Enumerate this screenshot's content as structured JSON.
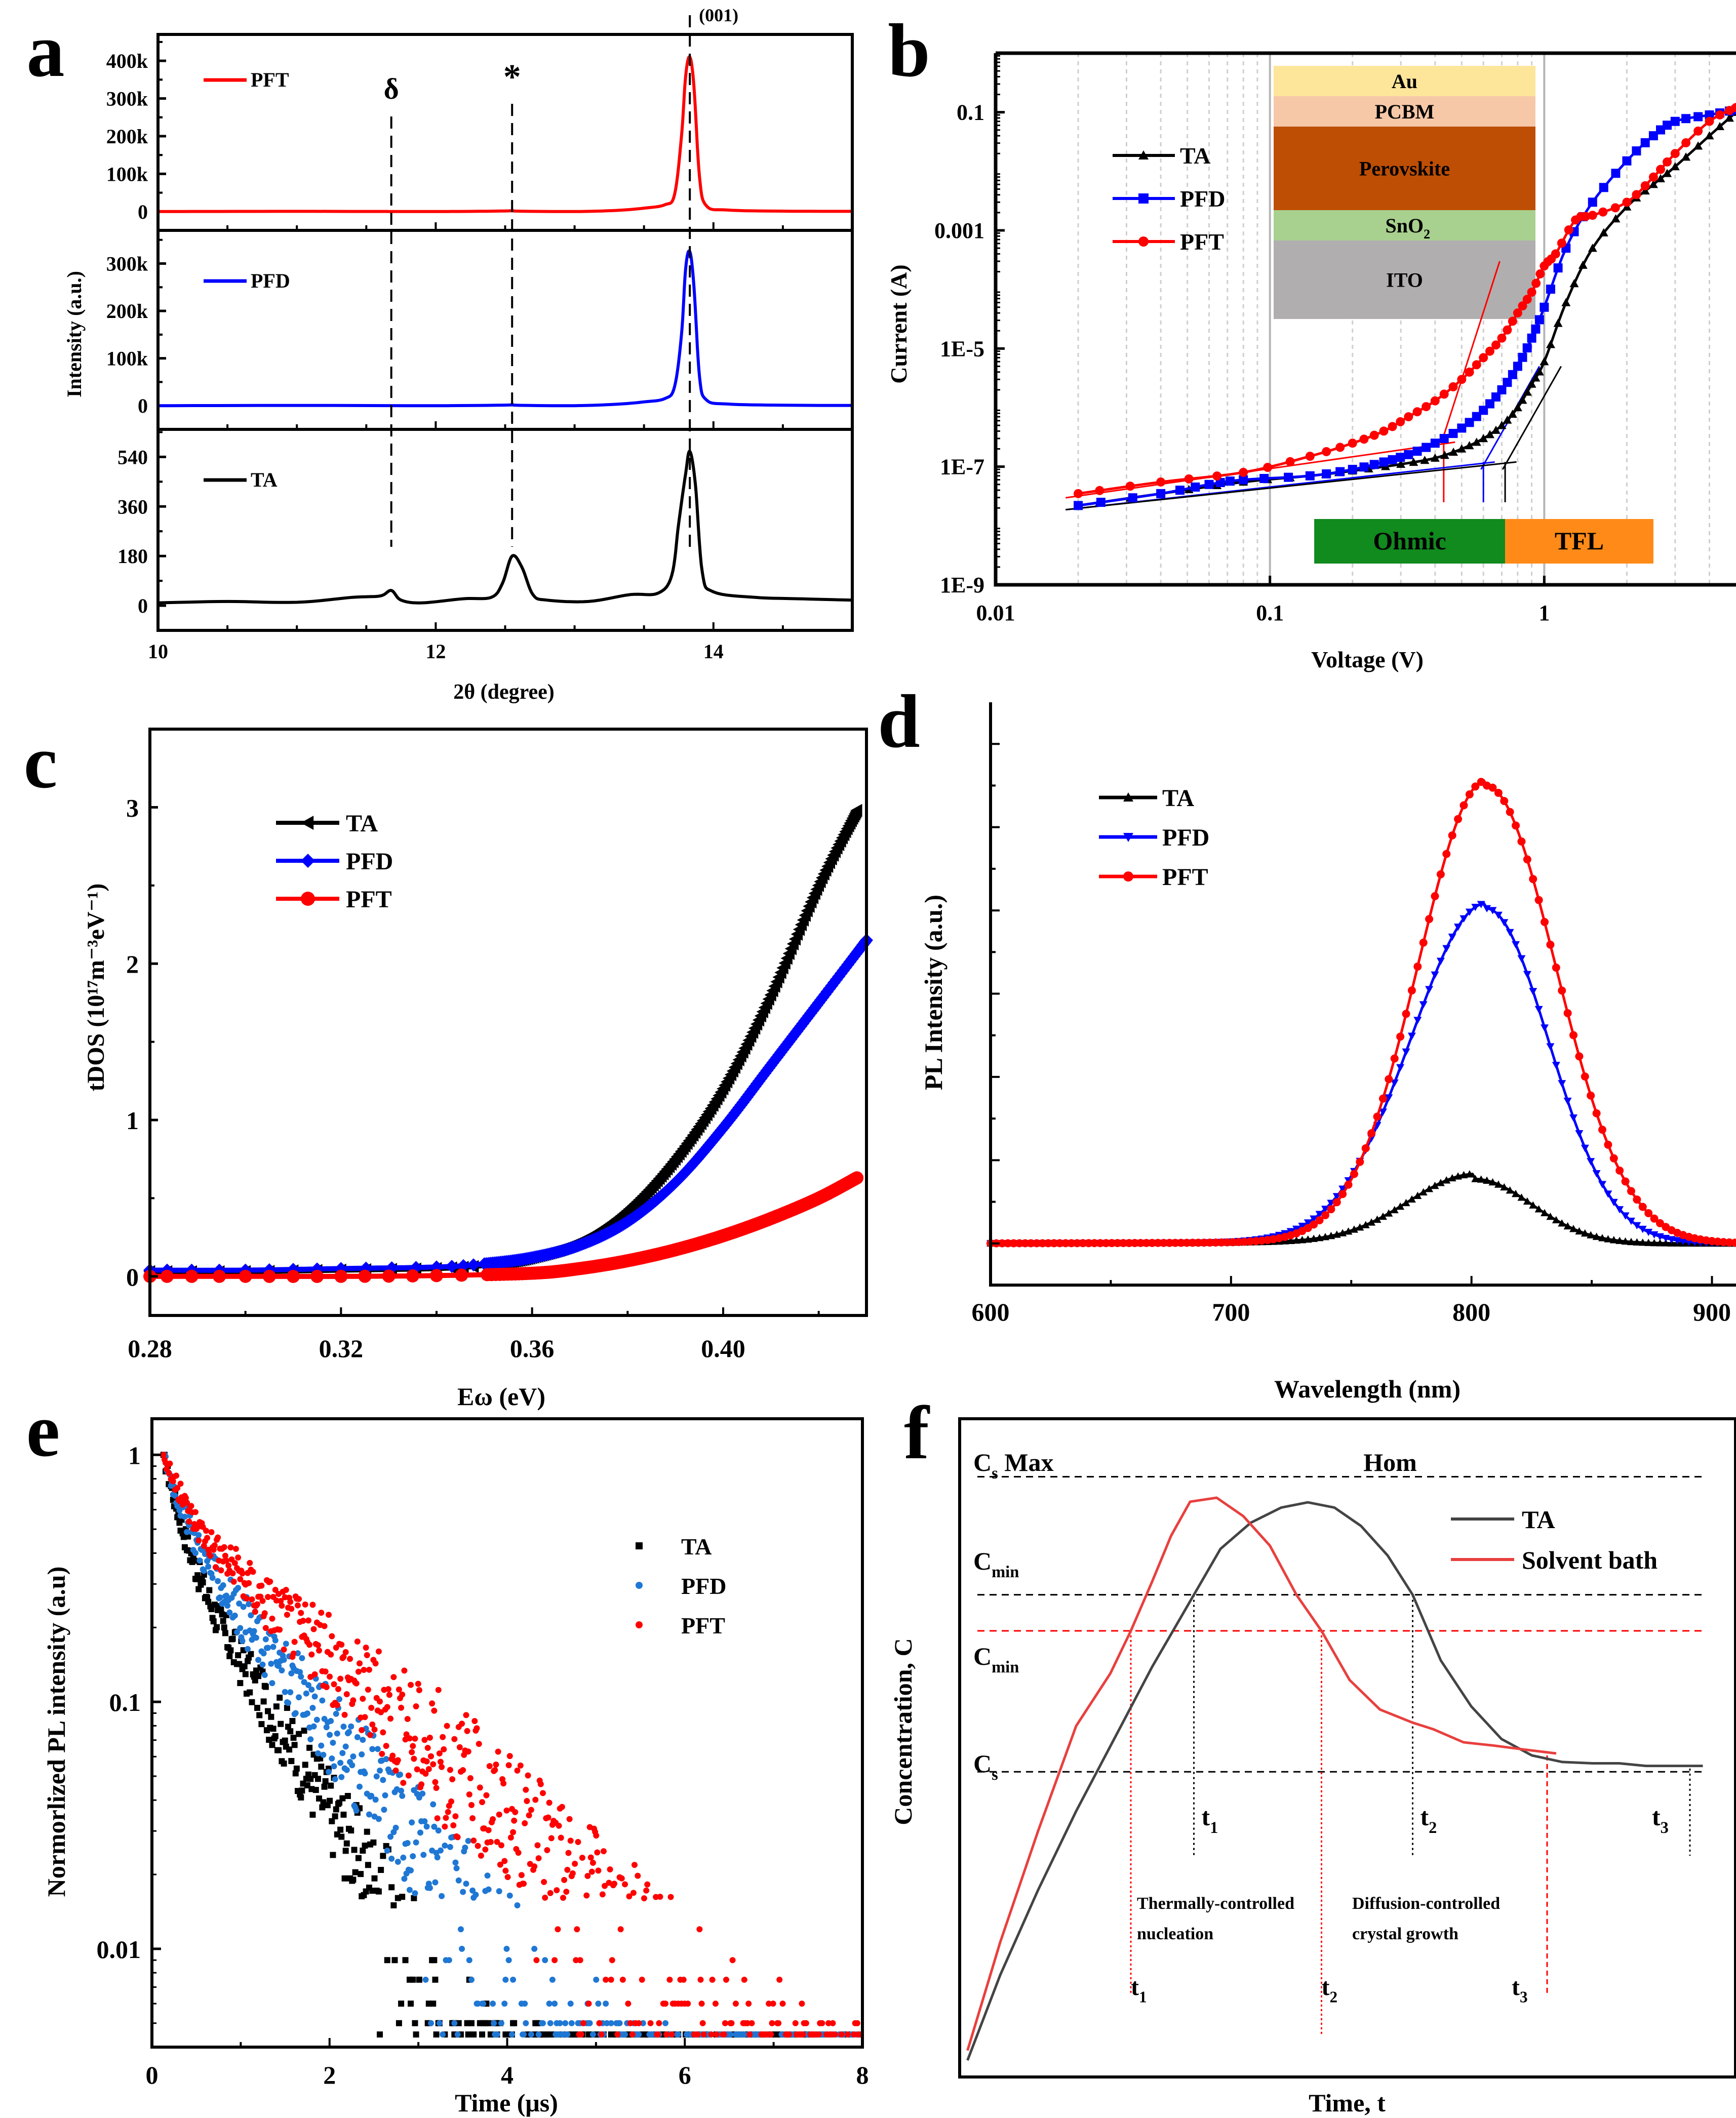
{
  "figure": {
    "panel_letters": [
      "a",
      "b",
      "c",
      "d",
      "e",
      "f"
    ]
  },
  "chart_data": [
    {
      "panel": "a",
      "type": "line",
      "title": "",
      "xlabel": "2θ (degree)",
      "ylabel": "Intensity (a.u.)",
      "xlim": [
        10,
        15
      ],
      "xticks": [
        10,
        12,
        14
      ],
      "colors": {
        "PFT": "#ff0000",
        "PFD": "#0000ff",
        "TA": "#000000"
      },
      "annotations": [
        {
          "text": "δ",
          "x": 11.68
        },
        {
          "text": "*",
          "x": 12.55
        },
        {
          "text": "(001)",
          "x": 13.83
        }
      ],
      "subplots": [
        {
          "name": "PFT",
          "ylim": [
            -50000,
            470000
          ],
          "yticks": [
            0,
            100000,
            200000,
            300000,
            400000
          ],
          "yticklabels": [
            "0",
            "100k",
            "200k",
            "300k",
            "400k"
          ],
          "x": [
            10,
            11,
            12,
            12.5,
            12.55,
            12.6,
            13,
            13.3,
            13.5,
            13.65,
            13.72,
            13.77,
            13.8,
            13.83,
            13.86,
            13.9,
            13.95,
            14.1,
            14.5,
            15
          ],
          "y": [
            0,
            500,
            0,
            1500,
            3000,
            1000,
            0,
            3000,
            9000,
            18000,
            45000,
            200000,
            360000,
            410000,
            330000,
            90000,
            15000,
            4000,
            1000,
            500
          ]
        },
        {
          "name": "PFD",
          "ylim": [
            -50000,
            370000
          ],
          "yticks": [
            0,
            100000,
            200000,
            300000
          ],
          "yticklabels": [
            "0",
            "100k",
            "200k",
            "300k"
          ],
          "x": [
            10,
            11,
            12,
            12.5,
            12.55,
            12.6,
            13,
            13.3,
            13.5,
            13.65,
            13.72,
            13.77,
            13.8,
            13.83,
            13.86,
            13.9,
            13.95,
            14.1,
            14.5,
            15
          ],
          "y": [
            0,
            500,
            0,
            1200,
            2500,
            800,
            0,
            3000,
            8000,
            15000,
            40000,
            150000,
            290000,
            325000,
            250000,
            60000,
            12000,
            3500,
            1000,
            500
          ]
        },
        {
          "name": "TA",
          "ylim": [
            -90,
            640
          ],
          "yticks": [
            0,
            180,
            360,
            540
          ],
          "yticklabels": [
            "0",
            "180",
            "360",
            "540"
          ],
          "x": [
            10,
            10.5,
            11,
            11.4,
            11.6,
            11.68,
            11.75,
            11.9,
            12.2,
            12.4,
            12.48,
            12.55,
            12.62,
            12.7,
            12.8,
            13.1,
            13.4,
            13.6,
            13.7,
            13.75,
            13.8,
            13.83,
            13.87,
            13.92,
            14.0,
            14.3,
            14.6,
            15
          ],
          "y": [
            10,
            15,
            12,
            30,
            35,
            55,
            20,
            10,
            25,
            30,
            80,
            180,
            140,
            40,
            20,
            15,
            40,
            45,
            110,
            300,
            480,
            560,
            440,
            120,
            50,
            30,
            25,
            20
          ]
        }
      ]
    },
    {
      "panel": "b",
      "type": "line",
      "title": "",
      "xlabel": "Voltage (V)",
      "ylabel": "Current (A)",
      "xscale": "log",
      "yscale": "log",
      "xlim": [
        0.01,
        5
      ],
      "ylim": [
        1e-09,
        1
      ],
      "xticklabels": [
        "0.01",
        "0.1",
        "1"
      ],
      "yticklabels": [
        "1E-9",
        "1E-7",
        "1E-5",
        "0.001",
        "0.1"
      ],
      "legend": {
        "position": "top-left",
        "entries": [
          "TA",
          "PFD",
          "PFT"
        ]
      },
      "colors": {
        "TA": "#000000",
        "PFD": "#0000ff",
        "PFT": "#ff0000"
      },
      "inset_layers": [
        {
          "label": "Au",
          "color": "#fde59a"
        },
        {
          "label": "PCBM",
          "color": "#f6c8a8"
        },
        {
          "label": "Perovskite",
          "color": "#bd4e04"
        },
        {
          "label": "SnO",
          "sub": "2",
          "color": "#a8d08e"
        },
        {
          "label": "ITO",
          "color": "#b0aeae"
        }
      ],
      "regions": [
        {
          "label": "Ohmic",
          "color": "#118a1e",
          "from": 0.145,
          "to": 0.72
        },
        {
          "label": "TFL",
          "color": "#ff8a17",
          "from": 0.72,
          "to": 2.5
        }
      ],
      "vtfl_lines": {
        "PFT": 0.43,
        "PFD": 0.6,
        "TA": 0.72
      },
      "series": [
        {
          "name": "TA",
          "x": [
            0.02,
            0.04,
            0.08,
            0.14,
            0.2,
            0.3,
            0.4,
            0.5,
            0.6,
            0.7,
            0.8,
            0.9,
            1.0,
            1.2,
            1.5,
            2.0,
            2.5,
            3.0,
            4.0,
            5.0
          ],
          "y": [
            2.2e-08,
            3.5e-08,
            5.5e-08,
            7e-08,
            8.5e-08,
            1.1e-07,
            1.4e-07,
            2e-07,
            3e-07,
            5e-07,
            1e-06,
            2.5e-06,
            6e-06,
            6e-05,
            0.0005,
            0.0025,
            0.006,
            0.012,
            0.04,
            0.1
          ]
        },
        {
          "name": "PFD",
          "x": [
            0.02,
            0.04,
            0.06,
            0.08,
            0.14,
            0.2,
            0.26,
            0.32,
            0.4,
            0.5,
            0.6,
            0.7,
            0.8,
            0.9,
            1.0,
            1.2,
            1.5,
            2.0,
            2.5,
            3.0,
            4.0,
            5.0
          ],
          "y": [
            2.2e-08,
            3.5e-08,
            5e-08,
            6e-08,
            7e-08,
            9e-08,
            1.2e-07,
            1.6e-07,
            2.5e-07,
            4.5e-07,
            9e-07,
            2e-06,
            5e-06,
            1.5e-05,
            5e-05,
            0.0005,
            0.003,
            0.015,
            0.04,
            0.07,
            0.09,
            0.11
          ]
        },
        {
          "name": "PFT",
          "x": [
            0.02,
            0.04,
            0.08,
            0.14,
            0.2,
            0.26,
            0.32,
            0.4,
            0.5,
            0.6,
            0.7,
            0.8,
            0.9,
            1.0,
            1.1,
            1.3,
            1.5,
            2.0,
            2.5,
            3.0,
            4.0,
            5.0
          ],
          "y": [
            3.5e-08,
            5.5e-08,
            8e-08,
            1.5e-07,
            2.5e-07,
            4e-07,
            7e-07,
            1.3e-06,
            3e-06,
            7e-06,
            1.5e-05,
            4e-05,
            9e-05,
            0.00025,
            0.0004,
            0.0015,
            0.0018,
            0.003,
            0.008,
            0.02,
            0.07,
            0.12
          ]
        }
      ]
    },
    {
      "panel": "c",
      "type": "line",
      "title": "",
      "xlabel": "Eω (eV)",
      "ylabel": "tDOS (10¹⁷m⁻³eV⁻¹)",
      "xlim": [
        0.28,
        0.43
      ],
      "ylim": [
        -0.25,
        3.5
      ],
      "xticks": [
        0.28,
        0.32,
        0.36,
        0.4
      ],
      "xticklabels": [
        "0.28",
        "0.32",
        "0.36",
        "0.40"
      ],
      "yticks": [
        0,
        1,
        2,
        3
      ],
      "yticklabels": [
        "0",
        "1",
        "2",
        "3"
      ],
      "legend": {
        "position": "top-left",
        "entries": [
          "TA",
          "PFD",
          "PFT"
        ]
      },
      "colors": {
        "TA": "#000000",
        "PFD": "#0000ff",
        "PFT": "#ff0000"
      },
      "series": [
        {
          "name": "TA",
          "x": [
            0.28,
            0.3,
            0.32,
            0.34,
            0.35,
            0.36,
            0.37,
            0.38,
            0.39,
            0.4,
            0.41,
            0.42,
            0.428
          ],
          "y": [
            0.03,
            0.03,
            0.04,
            0.05,
            0.07,
            0.12,
            0.22,
            0.42,
            0.75,
            1.2,
            1.8,
            2.5,
            2.98
          ]
        },
        {
          "name": "PFD",
          "x": [
            0.28,
            0.3,
            0.32,
            0.34,
            0.35,
            0.36,
            0.37,
            0.38,
            0.39,
            0.4,
            0.41,
            0.42,
            0.43
          ],
          "y": [
            0.04,
            0.04,
            0.05,
            0.06,
            0.08,
            0.12,
            0.2,
            0.35,
            0.6,
            0.95,
            1.35,
            1.75,
            2.15
          ]
        },
        {
          "name": "PFT",
          "x": [
            0.28,
            0.3,
            0.32,
            0.34,
            0.36,
            0.37,
            0.38,
            0.39,
            0.4,
            0.41,
            0.42,
            0.428
          ],
          "y": [
            0,
            0,
            0,
            0.005,
            0.02,
            0.05,
            0.1,
            0.17,
            0.26,
            0.37,
            0.5,
            0.63
          ]
        }
      ]
    },
    {
      "panel": "d",
      "type": "line",
      "title": "",
      "xlabel": "Wavelength (nm)",
      "ylabel": "PL Intensity (a.u.)",
      "xlim": [
        600,
        910
      ],
      "ylim": [
        -0.1,
        1.3
      ],
      "xticks": [
        600,
        700,
        800,
        900
      ],
      "xticklabels": [
        "600",
        "700",
        "800",
        "900"
      ],
      "legend": {
        "position": "top-left",
        "entries": [
          "TA",
          "PFD",
          "PFT"
        ]
      },
      "colors": {
        "TA": "#000000",
        "PFD": "#0000ff",
        "PFT": "#ff0000"
      },
      "series": [
        {
          "name": "TA",
          "peak_x": 801,
          "peak_y": 0.155,
          "sigma_left": 27,
          "sigma_right": 24
        },
        {
          "name": "PFD",
          "peak_x": 806,
          "peak_y": 0.805,
          "sigma_left": 31,
          "sigma_right": 26
        },
        {
          "name": "PFT",
          "peak_x": 806,
          "peak_y": 1.1,
          "sigma_left": 28,
          "sigma_right": 29
        }
      ]
    },
    {
      "panel": "e",
      "type": "scatter",
      "title": "",
      "xlabel": "Time (μs)",
      "ylabel": "Normorlized PL intensity (a.u)",
      "yscale": "log",
      "xlim": [
        0,
        8
      ],
      "ylim": [
        0.004,
        1.4
      ],
      "xticks": [
        0,
        2,
        4,
        6,
        8
      ],
      "xticklabels": [
        "0",
        "2",
        "4",
        "6",
        "8"
      ],
      "yticks": [
        0.01,
        0.1,
        1
      ],
      "yticklabels": [
        "0.01",
        "0.1",
        "1"
      ],
      "legend": {
        "position": "top-right",
        "entries": [
          "TA",
          "PFD",
          "PFT"
        ]
      },
      "colors": {
        "TA": "#000000",
        "PFD": "#1f77d4",
        "PFT": "#ff0000"
      },
      "series": [
        {
          "name": "TA",
          "t0": 0.13,
          "a1": 0.55,
          "tau1": 0.18,
          "a2": 0.45,
          "tau2": 0.75,
          "floor": 0.005
        },
        {
          "name": "PFD",
          "t0": 0.13,
          "a1": 0.45,
          "tau1": 0.2,
          "a2": 0.55,
          "tau2": 0.95,
          "floor": 0.005
        },
        {
          "name": "PFT",
          "t0": 0.13,
          "a1": 0.4,
          "tau1": 0.22,
          "a2": 0.6,
          "tau2": 1.35,
          "floor": 0.005
        }
      ]
    },
    {
      "panel": "f",
      "type": "line",
      "title": "",
      "xlabel": "Time, t",
      "ylabel": "Concentration, C",
      "xlim": [
        0,
        100
      ],
      "ylim": [
        0,
        100
      ],
      "legend": {
        "position": "top-right",
        "entries": [
          "TA",
          "Solvent bath"
        ]
      },
      "colors": {
        "TA": "#444444",
        "Solvent bath": "#e8403e"
      },
      "levels": [
        {
          "label": "Cs Max",
          "y": 91,
          "color": "#000000"
        },
        {
          "label": "Cmin",
          "y": 73,
          "color": "#000000"
        },
        {
          "label": "Cmin",
          "y": 67.5,
          "color": "#ff0000"
        },
        {
          "label": "Cs",
          "y": 46,
          "color": "#000000"
        }
      ],
      "text_labels": {
        "cs_max": "C",
        "cs_max_sub": "s",
        "cs_max_rest": " Max",
        "hom": "Hom",
        "cmin": "C",
        "cmin_sub": "min",
        "cs": "C",
        "cs_sub": "s",
        "nucleation_line1": "Thermally-controlled",
        "nucleation_line2": "nucleation",
        "growth_line1": "Diffusion-controlled",
        "growth_line2": "crystal growth"
      },
      "time_markers_black": [
        {
          "label": "t",
          "sub": "1",
          "x": 30.5
        },
        {
          "label": "t",
          "sub": "2",
          "x": 59.3
        },
        {
          "label": "t",
          "sub": "3",
          "x": 95.8
        }
      ],
      "time_markers_red": [
        {
          "label": "t",
          "sub": "1",
          "x": 22.2
        },
        {
          "label": "t",
          "sub": "2",
          "x": 47.3
        },
        {
          "label": "t",
          "sub": "3",
          "x": 77.0
        }
      ],
      "series": [
        {
          "name": "TA",
          "x": [
            0.7,
            5,
            10,
            15,
            20,
            25,
            30.5,
            34,
            38,
            42,
            45.5,
            49,
            52.5,
            56,
            59.3,
            63,
            67,
            71,
            75,
            79,
            83,
            86.5,
            90,
            93,
            95.8,
            97.5
          ],
          "y": [
            2,
            15,
            28,
            40,
            51,
            62,
            73,
            80,
            84,
            86.3,
            87.1,
            86.3,
            83.5,
            79,
            73,
            63,
            56,
            51,
            48.5,
            47.5,
            47.3,
            47.3,
            46.9,
            46.9,
            46.9,
            46.9
          ]
        },
        {
          "name": "Solvent bath",
          "x": [
            0.7,
            5,
            10,
            15,
            19.5,
            22.2,
            25,
            27.5,
            30,
            33.5,
            37,
            40.5,
            44,
            47.3,
            51,
            55,
            59.3,
            62,
            66,
            70,
            74,
            78.2
          ],
          "y": [
            3.5,
            20,
            37,
            53,
            61,
            67.5,
            75,
            82,
            87.2,
            87.8,
            85,
            80.5,
            73,
            67.5,
            60,
            55.5,
            53.5,
            52.5,
            50.5,
            50,
            49.4,
            48.8
          ]
        }
      ]
    }
  ]
}
